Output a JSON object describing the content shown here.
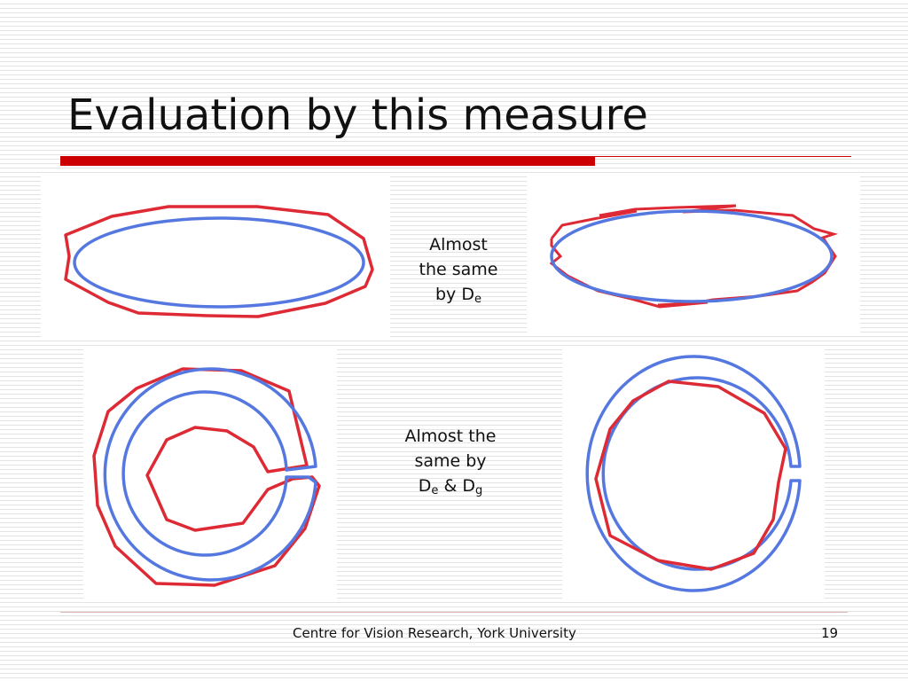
{
  "slide": {
    "title": "Evaluation by this measure",
    "accent_color": "#cc0000",
    "curve_colors": {
      "boundary_a": "#dd2a35",
      "boundary_b": "#5578e0"
    }
  },
  "captions": {
    "top": {
      "line1": "Almost",
      "line2": "the same",
      "line3": "by D",
      "sub1": "e"
    },
    "bottom": {
      "line1": "Almost the",
      "line2": "same by",
      "line3": "D",
      "sub1": "e",
      "amp": " & D",
      "sub2": "g"
    }
  },
  "footer": {
    "text": "Centre for Vision Research, York University",
    "page_number": "19"
  }
}
